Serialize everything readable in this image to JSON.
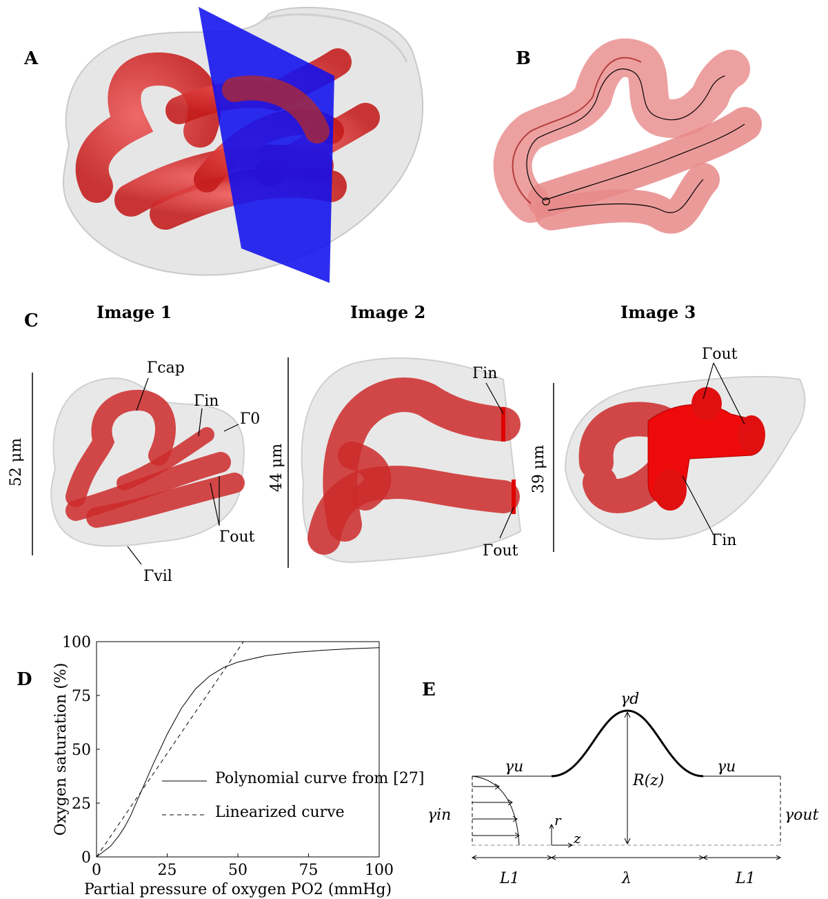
{
  "panels": {
    "a": "A",
    "b": "B",
    "c": "C",
    "d": "D",
    "e": "E"
  },
  "panel_c": {
    "image_titles": [
      "Image 1",
      "Image 2",
      "Image 3"
    ],
    "scale_labels": [
      "52 μm",
      "44 μm",
      "39 μm"
    ],
    "image1_labels": {
      "cap": "Γcap",
      "in": "Γin",
      "zero": "Γ0",
      "out": "Γout",
      "vil": "Γvil"
    },
    "image2_labels": {
      "in": "Γin",
      "out": "Γout"
    },
    "image3_labels": {
      "out": "Γout",
      "in": "Γin"
    }
  },
  "panel_e": {
    "labels": {
      "gamma_d": "γd",
      "gamma_u_left": "γu",
      "gamma_u_right": "γu",
      "R": "R(z)",
      "gamma_in": "γin",
      "gamma_out": "γout",
      "r": "r",
      "z": "z",
      "L1_left": "L1",
      "lambda": "λ",
      "L1_right": "L1"
    }
  },
  "chart_data": {
    "type": "line",
    "xlabel": "Partial pressure of oxygen PO2 (mmHg)",
    "ylabel": "Oxygen saturation (%)",
    "xlim": [
      0,
      100
    ],
    "ylim": [
      0,
      100
    ],
    "xticks": [
      0,
      25,
      50,
      75,
      100
    ],
    "yticks": [
      0,
      25,
      50,
      75,
      100
    ],
    "legend_position": "bottom-right",
    "series": [
      {
        "name": "Polynomial curve from [27]",
        "style": "solid",
        "x": [
          0,
          2,
          5,
          8,
          10,
          12,
          15,
          18,
          20,
          25,
          30,
          35,
          40,
          45,
          50,
          60,
          70,
          80,
          90,
          100
        ],
        "y": [
          0,
          2,
          5,
          10,
          14,
          19,
          28,
          37,
          43,
          57,
          69,
          78,
          84,
          88,
          90.5,
          93.5,
          95,
          96,
          96.7,
          97.2
        ]
      },
      {
        "name": "Linearized curve",
        "style": "dashed",
        "x": [
          0,
          52
        ],
        "y": [
          0,
          100
        ]
      }
    ]
  }
}
